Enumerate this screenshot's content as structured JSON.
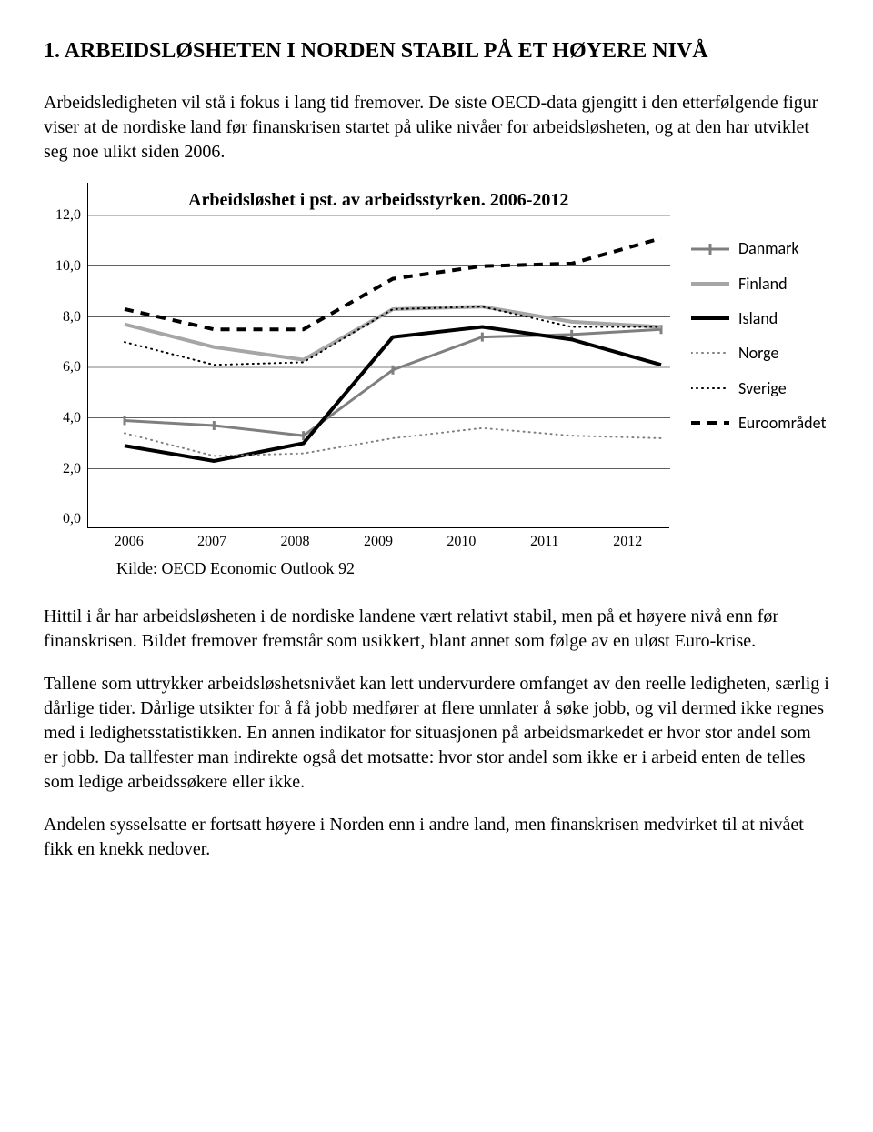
{
  "heading": "1.    ARBEIDSLØSHETEN I NORDEN STABIL PÅ ET HØYERE NIVÅ",
  "intro": "Arbeidsledigheten vil stå i fokus i lang tid fremover. De siste OECD-data gjengitt i den etterfølgende figur viser at de nordiske land før finanskrisen startet på ulike nivåer for arbeidsløsheten, og at den har utviklet seg noe ulikt siden 2006.",
  "chart": {
    "title": "Arbeidsløshet  i pst. av arbeidsstyrken. 2006-2012",
    "type": "line",
    "years": [
      "2006",
      "2007",
      "2008",
      "2009",
      "2010",
      "2011",
      "2012"
    ],
    "ylim": [
      0,
      12
    ],
    "ytick_step": 2.0,
    "yticks_labels": [
      "0,0",
      "2,0",
      "4,0",
      "6,0",
      "8,0",
      "10,0",
      "12,0"
    ],
    "background_color": "#ffffff",
    "grid_color": "#000000",
    "title_fontsize": 20,
    "label_fontsize": 16,
    "series": [
      {
        "name": "Danmark",
        "color": "#7f7f7f",
        "width": 3,
        "dash": "",
        "marker": "tick",
        "values": [
          3.9,
          3.7,
          3.3,
          5.9,
          7.2,
          7.3,
          7.5
        ]
      },
      {
        "name": "Finland",
        "color": "#a6a6a6",
        "width": 4,
        "dash": "",
        "marker": "",
        "values": [
          7.7,
          6.8,
          6.3,
          8.3,
          8.4,
          7.8,
          7.6
        ]
      },
      {
        "name": "Island",
        "color": "#000000",
        "width": 4,
        "dash": "",
        "marker": "",
        "values": [
          2.9,
          2.3,
          3.0,
          7.2,
          7.6,
          7.1,
          6.1
        ]
      },
      {
        "name": "Norge",
        "color": "#808080",
        "width": 2,
        "dash": "1 5",
        "marker": "",
        "values": [
          3.4,
          2.5,
          2.6,
          3.2,
          3.6,
          3.3,
          3.2
        ]
      },
      {
        "name": "Sverige",
        "color": "#000000",
        "width": 2,
        "dash": "1 5",
        "marker": "",
        "values": [
          7.0,
          6.1,
          6.2,
          8.3,
          8.4,
          7.6,
          7.6
        ]
      },
      {
        "name": "Euroområdet",
        "color": "#000000",
        "width": 4,
        "dash": "10 8",
        "marker": "",
        "values": [
          8.3,
          7.5,
          7.5,
          9.5,
          10.0,
          10.1,
          11.1
        ]
      }
    ],
    "source": "Kilde: OECD Economic Outlook 92"
  },
  "para1": "Hittil i år har arbeidsløsheten i de nordiske landene vært relativt stabil, men på et høyere nivå enn før finanskrisen. Bildet fremover fremstår som usikkert, blant annet som følge av en uløst Euro-krise.",
  "para2": "Tallene som uttrykker arbeidsløshetsnivået kan lett undervurdere omfanget av den reelle ledigheten, særlig i dårlige tider. Dårlige utsikter for å få jobb medfører at flere unnlater å søke jobb, og vil dermed ikke regnes med i ledighetsstatistikken. En annen indikator for situasjonen på arbeidsmarkedet er hvor stor andel som er jobb. Da tallfester man indirekte også det motsatte: hvor stor andel som ikke er i arbeid enten de telles som ledige arbeidssøkere eller ikke.",
  "para3": "Andelen sysselsatte er fortsatt høyere i Norden enn i andre land, men finanskrisen medvirket til at nivået fikk en knekk nedover."
}
